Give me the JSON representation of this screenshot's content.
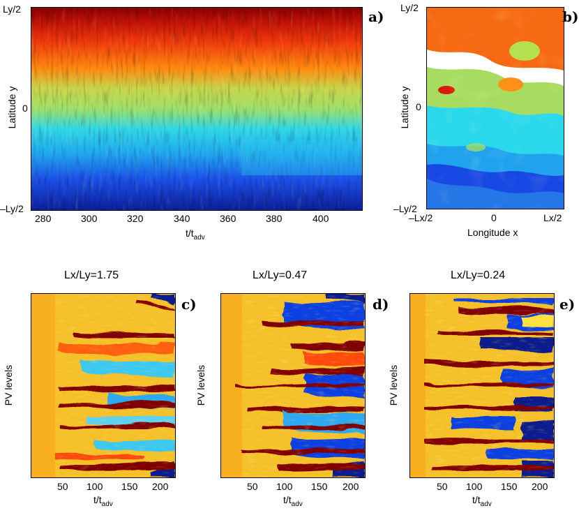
{
  "panel_a": {
    "label": "a)",
    "y_label": "Latitude y",
    "y_ticks": [
      "Ly/2",
      "0",
      "–Ly/2"
    ],
    "x_ticks": [
      "280",
      "300",
      "320",
      "340",
      "360",
      "380",
      "400"
    ],
    "x_label_main": "t/t",
    "x_label_sub": "adv"
  },
  "panel_b": {
    "label": "b)",
    "y_label": "Latitude y",
    "y_ticks": [
      "Ly/2",
      "0",
      "–Ly/2"
    ],
    "x_ticks": [
      "–Lx/2",
      "0",
      "Lx/2"
    ],
    "x_label": "Longitude x"
  },
  "panel_c": {
    "label": "c)",
    "title": "Lx/Ly=1.75",
    "y_label": "PV levels",
    "x_ticks": [
      "50",
      "100",
      "150",
      "200"
    ],
    "x_label_main": "t/t",
    "x_label_sub": "adv"
  },
  "panel_d": {
    "label": "d)",
    "title": "Lx/Ly=0.47",
    "y_label": "PV levels",
    "x_ticks": [
      "50",
      "100",
      "150",
      "200"
    ],
    "x_label_main": "t/t",
    "x_label_sub": "adv"
  },
  "panel_e": {
    "label": "e)",
    "title": "Lx/Ly=0.24",
    "y_label": "PV levels",
    "x_ticks": [
      "50",
      "100",
      "150",
      "200"
    ],
    "x_label_main": "t/t",
    "x_label_sub": "adv"
  },
  "colors": {
    "dark_red": "#800000",
    "red": "#e8200a",
    "orange": "#ff8a10",
    "yellow_orange": "#f5c12a",
    "yellow": "#ffd21e",
    "green": "#9ee06a",
    "cyan": "#2ee0f0",
    "light_blue": "#39a8f5",
    "blue": "#1040e0",
    "dark_blue": "#0a1c8c"
  }
}
